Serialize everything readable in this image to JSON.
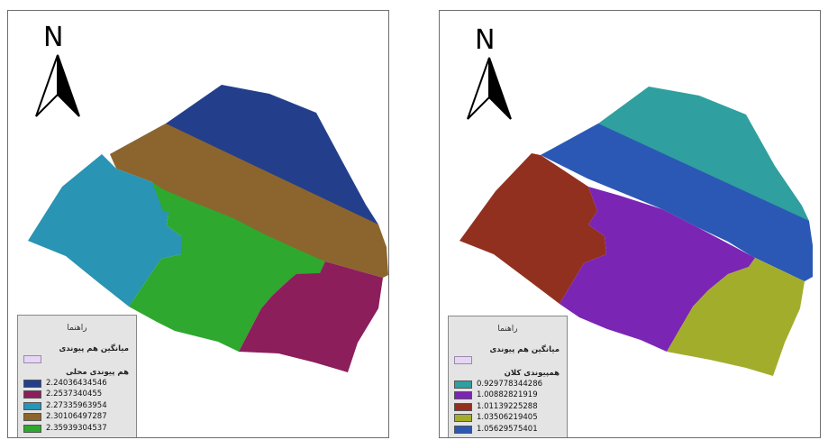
{
  "maps": [
    {
      "north_label": "N",
      "legend": {
        "title": "راهنما",
        "group1_label": "میانگین هم پیوندی",
        "group2_label": "هم پیوندی محلی",
        "items": [
          {
            "value": "2.24036434546",
            "color": "#233f8c"
          },
          {
            "value": "2.2537340455",
            "color": "#8c1e5c"
          },
          {
            "value": "2.27335963954",
            "color": "#2994b3"
          },
          {
            "value": "2.30106497287",
            "color": "#8c652e"
          },
          {
            "value": "2.35939304537",
            "color": "#2ea82e"
          }
        ]
      },
      "zone_colors": {
        "north": "#233f8c",
        "band": "#8c652e",
        "west": "#2994b3",
        "center": "#2ea82e",
        "southeast": "#8c1e5c"
      }
    },
    {
      "north_label": "N",
      "legend": {
        "title": "راهنما",
        "group1_label": "میانگین هم پیوندی",
        "group2_label": "همپیوندی کلان",
        "items": [
          {
            "value": "0.929778344286",
            "color": "#2f9f9f"
          },
          {
            "value": "1.00882821919",
            "color": "#7b25b5"
          },
          {
            "value": "1.01139225288",
            "color": "#92301f"
          },
          {
            "value": "1.03506219405",
            "color": "#a3ad2c"
          },
          {
            "value": "1.05629575401",
            "color": "#2b58b5"
          }
        ]
      },
      "zone_colors": {
        "north": "#2f9f9f",
        "band": "#2b58b5",
        "west": "#92301f",
        "center": "#7b25b5",
        "southeast": "#a3ad2c"
      }
    }
  ]
}
